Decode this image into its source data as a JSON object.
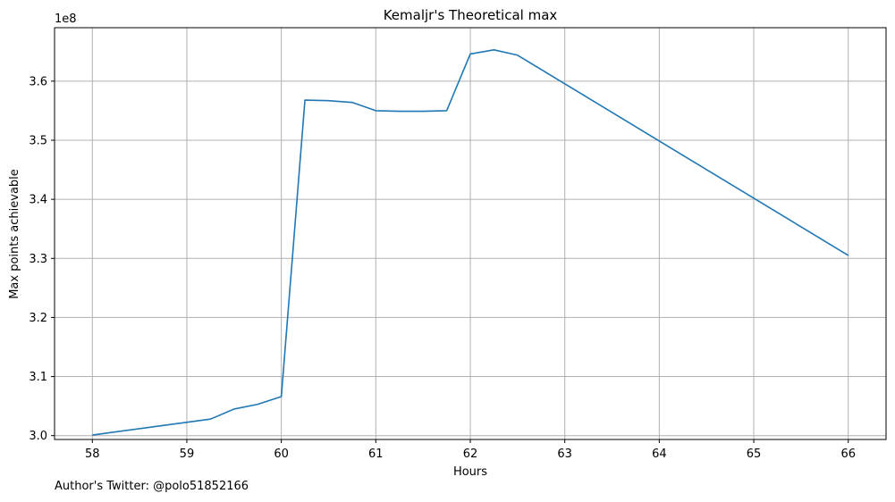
{
  "chart_data": {
    "type": "line",
    "title": "Kemaljr's Theoretical max",
    "xlabel": "Hours",
    "ylabel": "Max points achievable",
    "y_offset_label": "1e8",
    "xlim": [
      57.6,
      66.4
    ],
    "ylim": [
      2.9935,
      3.6905
    ],
    "x_ticks": [
      58,
      59,
      60,
      61,
      62,
      63,
      64,
      65,
      66
    ],
    "y_ticks": [
      3.0,
      3.1,
      3.2,
      3.3,
      3.4,
      3.5,
      3.6
    ],
    "y_tick_labels": [
      "3.0",
      "3.1",
      "3.2",
      "3.3",
      "3.4",
      "3.5",
      "3.6"
    ],
    "grid": true,
    "series": [
      {
        "color": "#1f77b4",
        "x": [
          58.0,
          59.25,
          59.5,
          59.75,
          60.0,
          60.25,
          60.5,
          60.75,
          61.0,
          61.25,
          61.5,
          61.75,
          62.0,
          62.25,
          62.5,
          66.0
        ],
        "y": [
          3.001,
          3.028,
          3.045,
          3.053,
          3.066,
          3.568,
          3.567,
          3.564,
          3.55,
          3.549,
          3.549,
          3.55,
          3.646,
          3.653,
          3.644,
          3.305
        ]
      }
    ]
  },
  "footer": {
    "text": "Author's Twitter: @polo51852166"
  }
}
